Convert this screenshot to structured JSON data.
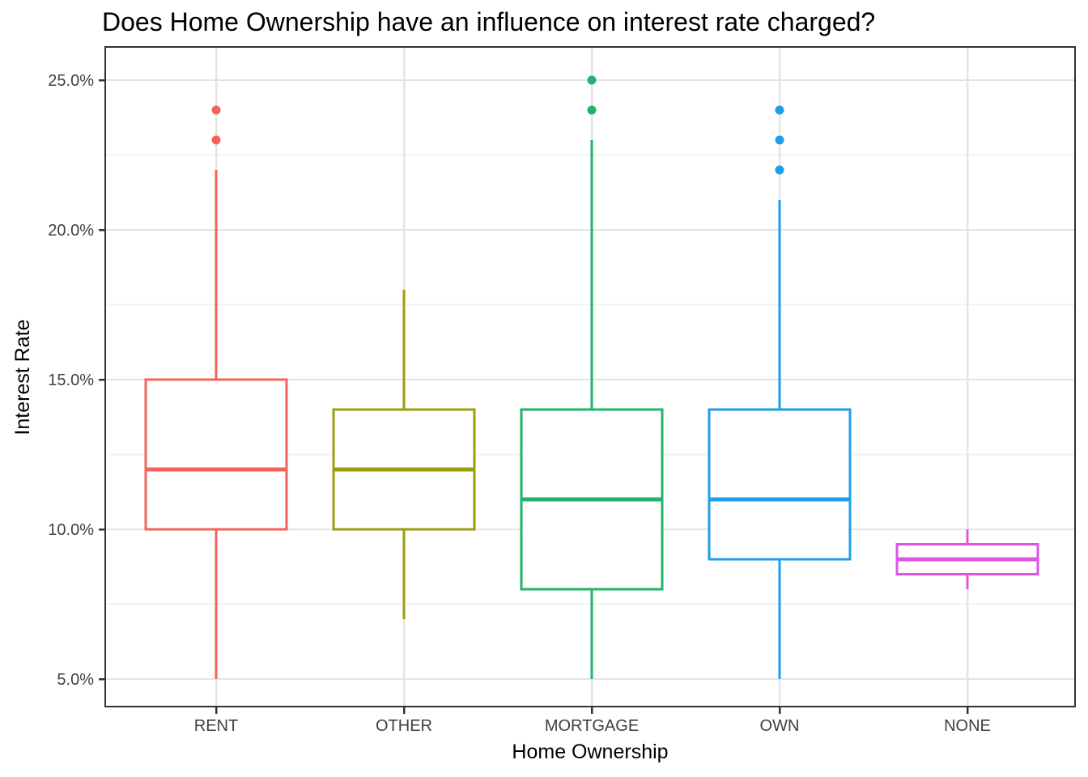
{
  "figure": {
    "background": "#FFFFFF",
    "panel_background": "#FFFFFF",
    "panel_border_color": "#333333",
    "grid_major_color": "#E4E4E4",
    "grid_minor_color": "#F2F2F2",
    "tick_mark_color": "#333333",
    "tick_label_color": "#404040",
    "title_color": "#000000"
  },
  "chart_data": {
    "type": "boxplot",
    "title": "Does Home Ownership have an influence on interest rate charged?",
    "xlabel": "Home Ownership",
    "ylabel": "Interest Rate",
    "value_unit": "percent",
    "legend": "none",
    "categories": [
      "RENT",
      "OTHER",
      "MORTGAGE",
      "OWN",
      "NONE"
    ],
    "y_axis": {
      "grid": true,
      "range": [
        4.1,
        26.1
      ],
      "ticks": [
        {
          "value": 5,
          "label": "5.0%"
        },
        {
          "value": 10,
          "label": "10.0%"
        },
        {
          "value": 15,
          "label": "15.0%"
        },
        {
          "value": 20,
          "label": "20.0%"
        },
        {
          "value": 25,
          "label": "25.0%"
        }
      ],
      "minor_ticks": [
        7.5,
        12.5,
        17.5,
        22.5
      ]
    },
    "series": [
      {
        "category": "RENT",
        "color": "#F4635B",
        "whisker_low": 5,
        "q1": 10,
        "median": 12,
        "q3": 15,
        "whisker_high": 22,
        "outliers": [
          23,
          24
        ]
      },
      {
        "category": "OTHER",
        "color": "#9C9D0D",
        "whisker_low": 7,
        "q1": 10,
        "median": 12,
        "q3": 14,
        "whisker_high": 18,
        "outliers": []
      },
      {
        "category": "MORTGAGE",
        "color": "#1FB467",
        "whisker_low": 5,
        "q1": 8,
        "median": 11,
        "q3": 14,
        "whisker_high": 23,
        "outliers": [
          24,
          25
        ]
      },
      {
        "category": "OWN",
        "color": "#1D9FE8",
        "whisker_low": 5,
        "q1": 9,
        "median": 11,
        "q3": 14,
        "whisker_high": 21,
        "outliers": [
          22,
          23,
          24
        ]
      },
      {
        "category": "NONE",
        "color": "#E153E1",
        "whisker_low": 8,
        "q1": 8.5,
        "median": 9,
        "q3": 9.5,
        "whisker_high": 10,
        "outliers": []
      }
    ]
  }
}
